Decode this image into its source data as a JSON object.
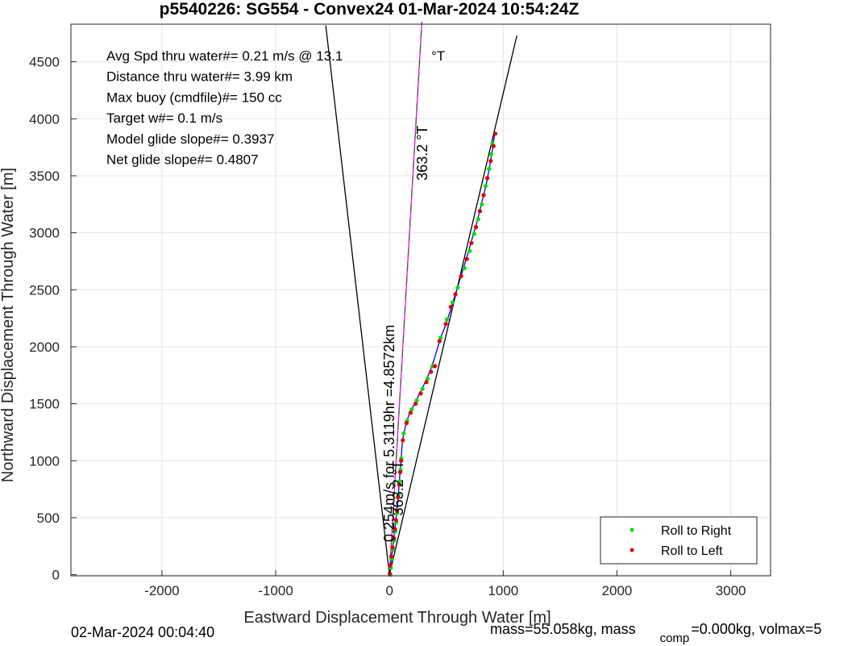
{
  "chart_data": {
    "type": "scatter",
    "title": "p5540226: SG554 - Convex24 01-Mar-2024 10:54:24Z",
    "xlabel": "Eastward Displacement Through Water [m]",
    "ylabel": "Northward Displacement Through Water [m]",
    "xlim": [
      -2800,
      3350
    ],
    "ylim": [
      -10,
      4830
    ],
    "xticks": [
      -2000,
      -1000,
      0,
      1000,
      2000,
      3000
    ],
    "yticks": [
      0,
      500,
      1000,
      1500,
      2000,
      2500,
      3000,
      3500,
      4000,
      4500
    ],
    "grid": true,
    "legend_position": "bottom-right",
    "stats_lines": [
      "Avg Spd thru water#=  0.21 m/s @  13.1",
      "Distance thru water#=  3.99 km",
      "Max buoy (cmdfile)#= 150 cc",
      "Target w#= 0.1 m/s",
      "Model glide slope#= 0.3937",
      "Net glide slope#= 0.4807"
    ],
    "stats_unit": "°T",
    "annotations": [
      {
        "text": "363.2  °T",
        "x": 330,
        "y": 3700
      },
      {
        "text": "363.2  °T",
        "x": 120,
        "y": 760
      },
      {
        "text": "0.254m/s for 5.3119hr =4.8572km",
        "x": 40,
        "y": 1240
      }
    ],
    "cone_lines": [
      {
        "name": "left bound",
        "color": "#000000",
        "points": [
          [
            0,
            0
          ],
          [
            -560,
            4820
          ]
        ]
      },
      {
        "name": "right bound",
        "color": "#000000",
        "points": [
          [
            0,
            0
          ],
          [
            1120,
            4730
          ]
        ]
      },
      {
        "name": "current vector",
        "color": "#ff00ff",
        "dashed_color": "#555555",
        "points": [
          [
            0,
            0
          ],
          [
            285,
            4850
          ]
        ]
      }
    ],
    "track": {
      "color": "#0000dd",
      "points": [
        [
          0,
          0
        ],
        [
          15,
          120
        ],
        [
          30,
          250
        ],
        [
          45,
          380
        ],
        [
          60,
          520
        ],
        [
          75,
          650
        ],
        [
          85,
          800
        ],
        [
          95,
          920
        ],
        [
          105,
          1050
        ],
        [
          115,
          1180
        ],
        [
          140,
          1300
        ],
        [
          170,
          1400
        ],
        [
          210,
          1480
        ],
        [
          250,
          1560
        ],
        [
          300,
          1660
        ],
        [
          350,
          1770
        ],
        [
          390,
          1880
        ],
        [
          420,
          1980
        ],
        [
          450,
          2080
        ],
        [
          490,
          2180
        ],
        [
          530,
          2300
        ],
        [
          570,
          2430
        ],
        [
          610,
          2560
        ],
        [
          650,
          2690
        ],
        [
          690,
          2820
        ],
        [
          730,
          2960
        ],
        [
          770,
          3100
        ],
        [
          810,
          3260
        ],
        [
          850,
          3420
        ],
        [
          880,
          3580
        ],
        [
          905,
          3730
        ],
        [
          925,
          3870
        ]
      ]
    },
    "series": [
      {
        "name": "Roll to Right",
        "color": "#00e000",
        "points": [
          [
            8,
            0
          ],
          [
            12,
            60
          ],
          [
            22,
            140
          ],
          [
            33,
            220
          ],
          [
            42,
            300
          ],
          [
            52,
            380
          ],
          [
            60,
            460
          ],
          [
            68,
            540
          ],
          [
            80,
            700
          ],
          [
            90,
            820
          ],
          [
            98,
            920
          ],
          [
            105,
            1020
          ],
          [
            125,
            1240
          ],
          [
            155,
            1350
          ],
          [
            195,
            1450
          ],
          [
            240,
            1530
          ],
          [
            290,
            1630
          ],
          [
            335,
            1720
          ],
          [
            380,
            1830
          ],
          [
            450,
            2080
          ],
          [
            505,
            2240
          ],
          [
            555,
            2390
          ],
          [
            600,
            2520
          ],
          [
            660,
            2690
          ],
          [
            705,
            2840
          ],
          [
            745,
            2990
          ],
          [
            780,
            3120
          ],
          [
            812,
            3250
          ],
          [
            845,
            3410
          ],
          [
            875,
            3560
          ],
          [
            895,
            3690
          ],
          [
            905,
            3780
          ]
        ]
      },
      {
        "name": "Roll to Left",
        "color": "#e00000",
        "points": [
          [
            2,
            10
          ],
          [
            5,
            80
          ],
          [
            16,
            160
          ],
          [
            27,
            240
          ],
          [
            38,
            320
          ],
          [
            48,
            400
          ],
          [
            57,
            480
          ],
          [
            66,
            560
          ],
          [
            75,
            680
          ],
          [
            86,
            790
          ],
          [
            94,
            900
          ],
          [
            102,
            1000
          ],
          [
            118,
            1180
          ],
          [
            150,
            1330
          ],
          [
            185,
            1420
          ],
          [
            230,
            1500
          ],
          [
            275,
            1590
          ],
          [
            325,
            1690
          ],
          [
            365,
            1780
          ],
          [
            400,
            1830
          ],
          [
            440,
            2050
          ],
          [
            495,
            2200
          ],
          [
            540,
            2350
          ],
          [
            580,
            2460
          ],
          [
            630,
            2620
          ],
          [
            680,
            2770
          ],
          [
            720,
            2910
          ],
          [
            760,
            3050
          ],
          [
            795,
            3190
          ],
          [
            828,
            3330
          ],
          [
            860,
            3480
          ],
          [
            890,
            3630
          ],
          [
            915,
            3760
          ],
          [
            930,
            3870
          ]
        ]
      }
    ],
    "footer_left": "02-Mar-2024 00:04:40",
    "footer_right_a": "mass=55.058kg, mass",
    "footer_right_sub": "comp",
    "footer_right_b": "=0.000kg, volmax=5"
  }
}
